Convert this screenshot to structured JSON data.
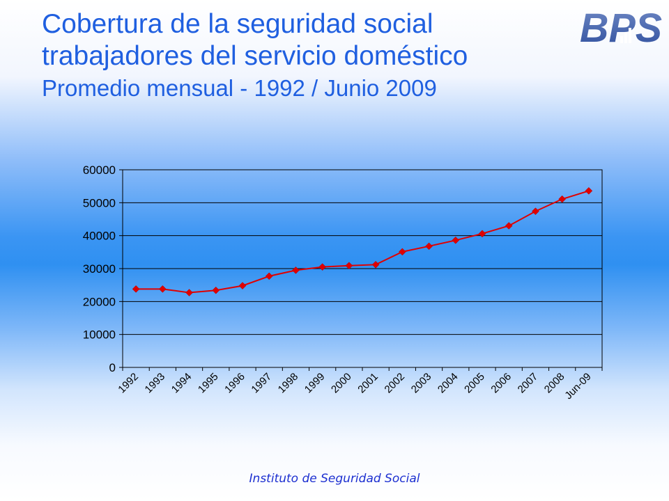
{
  "header": {
    "title_line1": "Cobertura de la seguridad social",
    "title_line2": "trabajadores del servicio doméstico",
    "subtitle": "Promedio mensual - 1992 / Junio 2009"
  },
  "logo": {
    "text": "BPS",
    "icon": "bps-logo"
  },
  "footer": {
    "text": "Instituto de Seguridad Social"
  },
  "colors": {
    "title": "#1f5fe0",
    "series": "#e00000",
    "logo": "#3a5aa8",
    "footer": "#1c2fd0"
  },
  "chart_data": {
    "type": "line",
    "categories": [
      "1992",
      "1993",
      "1994",
      "1995",
      "1996",
      "1997",
      "1998",
      "1999",
      "2000",
      "2001",
      "2002",
      "2003",
      "2004",
      "2005",
      "2006",
      "2007",
      "2008",
      "Jun-09"
    ],
    "series": [
      {
        "values": [
          23800,
          23800,
          22700,
          23400,
          24800,
          27700,
          29500,
          30500,
          30900,
          31200,
          35100,
          36800,
          38600,
          40600,
          43000,
          47400,
          51100,
          53600
        ]
      }
    ],
    "ylim": [
      0,
      60000
    ],
    "yticks": [
      "0",
      "10000",
      "20000",
      "30000",
      "40000",
      "50000",
      "60000"
    ],
    "grid": true,
    "marker": "diamond"
  }
}
